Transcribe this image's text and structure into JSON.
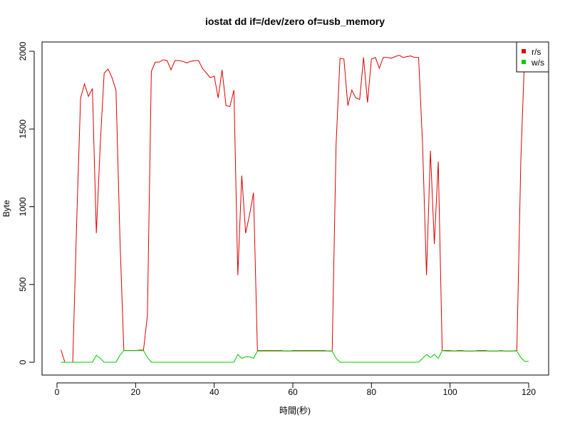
{
  "chart_data": {
    "type": "line",
    "title": "iostat dd if=/dev/zero of=usb_memory",
    "xlabel": "時間(秒)",
    "ylabel": "Byte",
    "xlim": [
      0,
      120
    ],
    "ylim": [
      0,
      2000
    ],
    "x_ticks": [
      0,
      20,
      40,
      60,
      80,
      100,
      120
    ],
    "y_ticks": [
      0,
      500,
      1000,
      1500,
      2000
    ],
    "grid": false,
    "legend": {
      "position": "top-right",
      "entries": [
        {
          "label": "r/s",
          "color": "#dd0000"
        },
        {
          "label": "w/s",
          "color": "#00cc00"
        }
      ]
    },
    "series": [
      {
        "name": "r/s",
        "color": "#dd0000",
        "x": [
          1,
          2,
          3,
          4,
          5,
          6,
          7,
          8,
          9,
          10,
          11,
          12,
          13,
          14,
          15,
          16,
          17,
          18,
          19,
          20,
          21,
          22,
          23,
          24,
          25,
          26,
          27,
          28,
          29,
          30,
          31,
          32,
          33,
          34,
          35,
          36,
          37,
          38,
          39,
          40,
          41,
          42,
          43,
          44,
          45,
          46,
          47,
          48,
          49,
          50,
          51,
          52,
          53,
          54,
          55,
          56,
          57,
          58,
          59,
          60,
          61,
          62,
          63,
          64,
          65,
          66,
          67,
          68,
          69,
          70,
          71,
          72,
          73,
          74,
          75,
          76,
          77,
          78,
          79,
          80,
          81,
          82,
          83,
          84,
          85,
          86,
          87,
          88,
          89,
          90,
          91,
          92,
          93,
          94,
          95,
          96,
          97,
          98,
          99,
          100,
          101,
          102,
          103,
          104,
          105,
          106,
          107,
          108,
          109,
          110,
          111,
          112,
          113,
          114,
          115,
          116,
          117,
          118,
          119,
          120
        ],
        "values": [
          80,
          0,
          0,
          0,
          900,
          1700,
          1790,
          1710,
          1760,
          830,
          1400,
          1860,
          1885,
          1830,
          1750,
          800,
          75,
          75,
          75,
          75,
          78,
          78,
          300,
          1870,
          1930,
          1930,
          1945,
          1940,
          1880,
          1940,
          1940,
          1935,
          1925,
          1935,
          1940,
          1940,
          1890,
          1860,
          1830,
          1840,
          1700,
          1880,
          1650,
          1645,
          1750,
          560,
          1200,
          830,
          950,
          1090,
          75,
          75,
          75,
          75,
          75,
          75,
          75,
          72,
          72,
          75,
          75,
          75,
          75,
          75,
          75,
          75,
          75,
          75,
          72,
          72,
          1400,
          1955,
          1950,
          1650,
          1750,
          1700,
          1690,
          1960,
          1670,
          1950,
          1960,
          1890,
          1960,
          1960,
          1955,
          1965,
          1975,
          1960,
          1965,
          1970,
          1960,
          1960,
          1400,
          560,
          1360,
          760,
          1290,
          75,
          75,
          75,
          72,
          75,
          75,
          72,
          72,
          72,
          75,
          75,
          75,
          72,
          72,
          72,
          75,
          72,
          72,
          72,
          75,
          1300,
          2000,
          2000
        ]
      },
      {
        "name": "w/s",
        "color": "#00cc00",
        "x": [
          1,
          2,
          3,
          4,
          5,
          6,
          7,
          8,
          9,
          10,
          11,
          12,
          13,
          14,
          15,
          16,
          17,
          18,
          19,
          20,
          21,
          22,
          23,
          24,
          25,
          26,
          27,
          28,
          29,
          30,
          31,
          32,
          33,
          34,
          35,
          36,
          37,
          38,
          39,
          40,
          41,
          42,
          43,
          44,
          45,
          46,
          47,
          48,
          49,
          50,
          51,
          52,
          53,
          54,
          55,
          56,
          57,
          58,
          59,
          60,
          61,
          62,
          63,
          64,
          65,
          66,
          67,
          68,
          69,
          70,
          71,
          72,
          73,
          74,
          75,
          76,
          77,
          78,
          79,
          80,
          81,
          82,
          83,
          84,
          85,
          86,
          87,
          88,
          89,
          90,
          91,
          92,
          93,
          94,
          95,
          96,
          97,
          98,
          99,
          100,
          101,
          102,
          103,
          104,
          105,
          106,
          107,
          108,
          109,
          110,
          111,
          112,
          113,
          114,
          115,
          116,
          117,
          118,
          119,
          120
        ],
        "values": [
          0,
          0,
          0,
          0,
          0,
          0,
          0,
          0,
          0,
          45,
          25,
          0,
          0,
          0,
          0,
          45,
          75,
          75,
          75,
          75,
          75,
          75,
          30,
          0,
          0,
          0,
          0,
          0,
          0,
          0,
          0,
          0,
          0,
          0,
          0,
          0,
          0,
          0,
          0,
          0,
          0,
          0,
          0,
          0,
          0,
          50,
          25,
          35,
          35,
          25,
          72,
          72,
          72,
          72,
          72,
          72,
          72,
          72,
          72,
          72,
          72,
          72,
          72,
          72,
          72,
          72,
          72,
          72,
          72,
          72,
          25,
          0,
          0,
          0,
          0,
          0,
          0,
          0,
          0,
          0,
          0,
          0,
          0,
          0,
          0,
          0,
          0,
          0,
          0,
          0,
          0,
          0,
          25,
          50,
          30,
          50,
          25,
          75,
          72,
          72,
          72,
          72,
          72,
          72,
          72,
          72,
          72,
          72,
          72,
          72,
          72,
          72,
          72,
          72,
          72,
          72,
          72,
          30,
          5,
          5
        ]
      }
    ]
  }
}
